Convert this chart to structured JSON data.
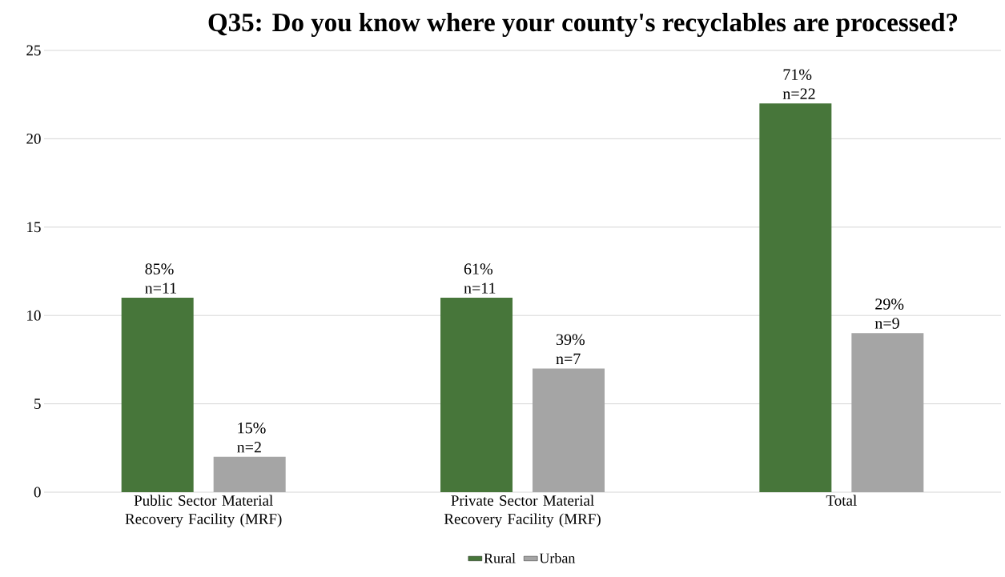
{
  "chart_data": {
    "type": "bar",
    "title": "Q35: Do you know where your county's recyclables are processed?",
    "categories": [
      "Public Sector Material Recovery Facility (MRF)",
      "Private Sector Material Recovery Facility (MRF)",
      "Total"
    ],
    "series": [
      {
        "name": "Rural",
        "color": "#47763a",
        "values": [
          11,
          11,
          22
        ],
        "value_labels": [
          "85% n=11",
          "61% n=11",
          "71% n=22"
        ]
      },
      {
        "name": "Urban",
        "color": "#a5a5a5",
        "values": [
          2,
          7,
          9
        ],
        "value_labels": [
          "15% n=2",
          "39% n=7",
          "29% n=9"
        ]
      }
    ],
    "ylim": [
      0,
      25
    ],
    "yticks": [
      0,
      5,
      10,
      15,
      20,
      25
    ],
    "grid": "y",
    "legend": "bottom"
  }
}
